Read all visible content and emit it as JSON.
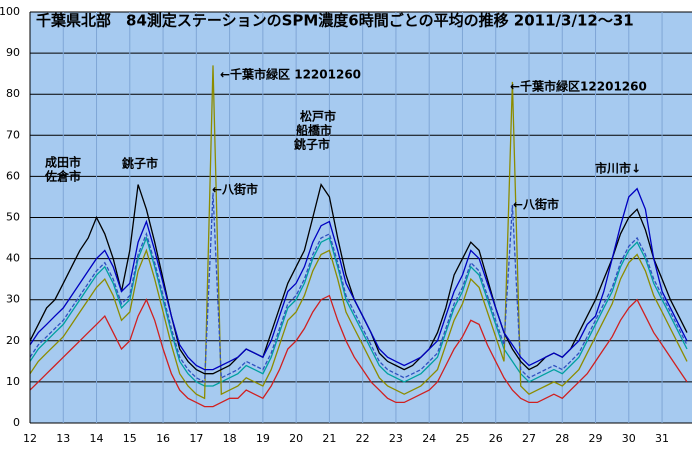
{
  "chart_data": {
    "type": "line",
    "title": "千葉県北部　84測定ステーションのSPM濃度6時間ごとの平均の推移 2011/3/12～31",
    "x": [
      12,
      12.25,
      12.5,
      12.75,
      13,
      13.25,
      13.5,
      13.75,
      14,
      14.25,
      14.5,
      14.75,
      15,
      15.25,
      15.5,
      15.75,
      16,
      16.25,
      16.5,
      16.75,
      17,
      17.25,
      17.5,
      17.75,
      18,
      18.25,
      18.5,
      18.75,
      19,
      19.25,
      19.5,
      19.75,
      20,
      20.25,
      20.5,
      20.75,
      21,
      21.25,
      21.5,
      21.75,
      22,
      22.25,
      22.5,
      22.75,
      23,
      23.25,
      23.5,
      23.75,
      24,
      24.25,
      24.5,
      24.75,
      25,
      25.25,
      25.5,
      25.75,
      26,
      26.25,
      26.5,
      26.75,
      27,
      27.25,
      27.5,
      27.75,
      28,
      28.25,
      28.5,
      28.75,
      29,
      29.25,
      29.5,
      29.75,
      30,
      30.25,
      30.5,
      30.75,
      31,
      31.25,
      31.5,
      31.75
    ],
    "series": [
      {
        "color": "#00a0a0",
        "values": [
          15,
          18,
          20,
          22,
          24,
          27,
          30,
          33,
          36,
          38,
          34,
          28,
          30,
          40,
          45,
          38,
          30,
          22,
          15,
          12,
          10,
          9,
          9,
          10,
          11,
          12,
          14,
          13,
          12,
          16,
          22,
          28,
          30,
          34,
          40,
          44,
          45,
          38,
          30,
          26,
          22,
          18,
          14,
          12,
          11,
          10,
          11,
          12,
          14,
          16,
          22,
          28,
          32,
          38,
          36,
          30,
          24,
          18,
          15,
          12,
          10,
          11,
          12,
          13,
          12,
          14,
          16,
          20,
          24,
          28,
          32,
          38,
          42,
          44,
          40,
          34,
          30,
          26,
          22,
          18
        ]
      },
      {
        "color": "#8c8c00",
        "values": [
          12,
          15,
          17,
          19,
          21,
          24,
          27,
          30,
          33,
          35,
          31,
          25,
          27,
          37,
          42,
          35,
          27,
          19,
          12,
          9,
          7,
          6,
          87,
          7,
          8,
          9,
          11,
          10,
          9,
          13,
          19,
          25,
          27,
          31,
          37,
          41,
          42,
          35,
          27,
          23,
          19,
          15,
          11,
          9,
          8,
          7,
          8,
          9,
          11,
          13,
          19,
          25,
          29,
          35,
          33,
          27,
          21,
          15,
          83,
          9,
          7,
          8,
          9,
          10,
          9,
          11,
          13,
          17,
          21,
          25,
          29,
          35,
          39,
          41,
          37,
          31,
          27,
          23,
          19,
          15
        ]
      },
      {
        "color": "#3050c0",
        "dash": true,
        "values": [
          16,
          19,
          21,
          23,
          25,
          28,
          31,
          34,
          37,
          39,
          35,
          29,
          31,
          41,
          46,
          39,
          31,
          23,
          16,
          13,
          11,
          10,
          56,
          11,
          12,
          13,
          15,
          14,
          13,
          17,
          23,
          29,
          31,
          35,
          41,
          45,
          46,
          39,
          31,
          27,
          23,
          19,
          15,
          13,
          12,
          11,
          12,
          13,
          15,
          17,
          23,
          29,
          33,
          39,
          37,
          31,
          25,
          19,
          53,
          13,
          11,
          12,
          13,
          14,
          13,
          15,
          17,
          21,
          25,
          29,
          33,
          39,
          43,
          45,
          41,
          35,
          31,
          27,
          23,
          19
        ]
      },
      {
        "color": "#000000",
        "values": [
          20,
          24,
          28,
          30,
          34,
          38,
          42,
          45,
          50,
          46,
          40,
          32,
          42,
          58,
          52,
          44,
          35,
          26,
          18,
          15,
          13,
          12,
          12,
          13,
          14,
          16,
          18,
          17,
          16,
          22,
          28,
          34,
          38,
          42,
          50,
          58,
          55,
          45,
          36,
          30,
          26,
          22,
          17,
          15,
          14,
          13,
          14,
          16,
          18,
          22,
          28,
          36,
          40,
          44,
          42,
          35,
          28,
          22,
          18,
          15,
          13,
          14,
          16,
          17,
          16,
          18,
          22,
          26,
          30,
          35,
          40,
          46,
          50,
          52,
          47,
          40,
          35,
          30,
          26,
          22
        ]
      },
      {
        "color": "#d02020",
        "values": [
          8,
          10,
          12,
          14,
          16,
          18,
          20,
          22,
          24,
          26,
          22,
          18,
          20,
          26,
          30,
          25,
          18,
          12,
          8,
          6,
          5,
          4,
          4,
          5,
          6,
          6,
          8,
          7,
          6,
          9,
          13,
          18,
          20,
          23,
          27,
          30,
          31,
          25,
          20,
          16,
          13,
          10,
          8,
          6,
          5,
          5,
          6,
          7,
          8,
          10,
          14,
          18,
          21,
          25,
          24,
          19,
          15,
          11,
          8,
          6,
          5,
          5,
          6,
          7,
          6,
          8,
          10,
          12,
          15,
          18,
          21,
          25,
          28,
          30,
          26,
          22,
          19,
          16,
          13,
          10
        ]
      },
      {
        "color": "#0000c0",
        "values": [
          19,
          22,
          24,
          26,
          28,
          31,
          34,
          37,
          40,
          42,
          38,
          32,
          34,
          44,
          49,
          42,
          34,
          26,
          19,
          16,
          14,
          13,
          13,
          14,
          15,
          16,
          18,
          17,
          16,
          20,
          26,
          32,
          34,
          38,
          44,
          48,
          49,
          42,
          34,
          30,
          26,
          22,
          18,
          16,
          15,
          14,
          15,
          16,
          18,
          20,
          26,
          32,
          36,
          42,
          40,
          34,
          28,
          22,
          19,
          16,
          14,
          15,
          16,
          17,
          16,
          18,
          20,
          24,
          26,
          32,
          40,
          48,
          55,
          57,
          52,
          40,
          32,
          28,
          24,
          20
        ]
      }
    ],
    "xlim": [
      12,
      31.9
    ],
    "xticks": [
      12,
      13,
      14,
      15,
      16,
      17,
      18,
      19,
      20,
      21,
      22,
      23,
      24,
      25,
      26,
      27,
      28,
      29,
      30,
      31
    ],
    "ylim": [
      0,
      100
    ],
    "yticks": [
      0,
      10,
      20,
      30,
      40,
      50,
      60,
      70,
      80,
      90,
      100
    ],
    "grid": true,
    "annotations": [
      "←千葉市緑区 12201260",
      "←八街市",
      "成田市",
      "佐倉市",
      "銚子市",
      "松戸市",
      "船橋市",
      "銚子市",
      "←千葉市緑区12201260",
      "←八街市",
      "市川市↓"
    ]
  }
}
